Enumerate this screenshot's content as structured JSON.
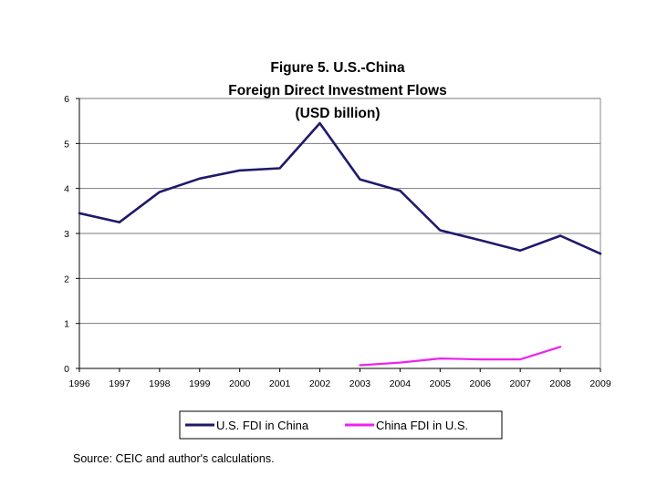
{
  "chart_data": {
    "type": "line",
    "title_lines": [
      "Figure 5. U.S.-China",
      "Foreign Direct Investment Flows",
      "(USD billion)"
    ],
    "x": [
      "1996",
      "1997",
      "1998",
      "1999",
      "2000",
      "2001",
      "2002",
      "2003",
      "2004",
      "2005",
      "2006",
      "2007",
      "2008",
      "2009"
    ],
    "ylim": [
      0,
      6
    ],
    "yticks": [
      0,
      1,
      2,
      3,
      4,
      5,
      6
    ],
    "grid": true,
    "legend_position": "bottom",
    "series": [
      {
        "name": "U.S. FDI in China",
        "color": "#1f1a6b",
        "values": [
          3.45,
          3.25,
          3.92,
          4.22,
          4.4,
          4.45,
          5.45,
          4.2,
          3.95,
          3.07,
          2.85,
          2.62,
          2.95,
          2.55
        ]
      },
      {
        "name": "China FDI in U.S.",
        "color": "#ee22ee",
        "values": [
          null,
          null,
          null,
          null,
          null,
          null,
          null,
          0.07,
          0.13,
          0.22,
          0.2,
          0.2,
          0.48,
          null
        ]
      }
    ],
    "source": "Source: CEIC and author's calculations."
  }
}
